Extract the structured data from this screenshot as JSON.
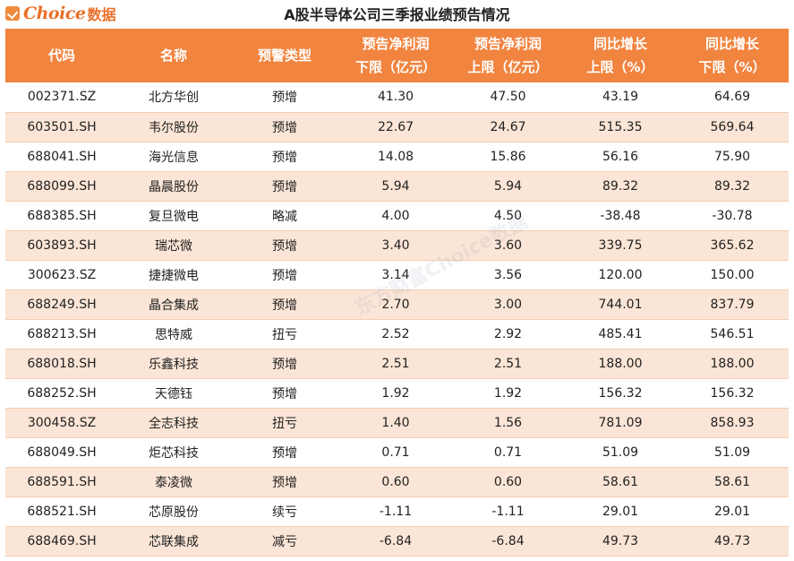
{
  "logo": {
    "text": "Choice",
    "cn": "数据"
  },
  "title": "A股半导体公司三季报业绩预告情况",
  "watermark": "东方财富Choice数据",
  "columns": [
    {
      "line1": "代码",
      "line2": ""
    },
    {
      "line1": "名称",
      "line2": ""
    },
    {
      "line1": "预警类型",
      "line2": ""
    },
    {
      "line1": "预告净利润",
      "line2": "下限（亿元）"
    },
    {
      "line1": "预告净利润",
      "line2": "上限（亿元）"
    },
    {
      "line1": "同比增长",
      "line2": "上限（%）"
    },
    {
      "line1": "同比增长",
      "line2": "下限（%）"
    }
  ],
  "rows": [
    [
      "002371.SZ",
      "北方华创",
      "预增",
      "41.30",
      "47.50",
      "43.19",
      "64.69"
    ],
    [
      "603501.SH",
      "韦尔股份",
      "预增",
      "22.67",
      "24.67",
      "515.35",
      "569.64"
    ],
    [
      "688041.SH",
      "海光信息",
      "预增",
      "14.08",
      "15.86",
      "56.16",
      "75.90"
    ],
    [
      "688099.SH",
      "晶晨股份",
      "预增",
      "5.94",
      "5.94",
      "89.32",
      "89.32"
    ],
    [
      "688385.SH",
      "复旦微电",
      "略减",
      "4.00",
      "4.50",
      "-38.48",
      "-30.78"
    ],
    [
      "603893.SH",
      "瑞芯微",
      "预增",
      "3.40",
      "3.60",
      "339.75",
      "365.62"
    ],
    [
      "300623.SZ",
      "捷捷微电",
      "预增",
      "3.14",
      "3.56",
      "120.00",
      "150.00"
    ],
    [
      "688249.SH",
      "晶合集成",
      "预增",
      "2.70",
      "3.00",
      "744.01",
      "837.79"
    ],
    [
      "688213.SH",
      "思特威",
      "扭亏",
      "2.52",
      "2.92",
      "485.41",
      "546.51"
    ],
    [
      "688018.SH",
      "乐鑫科技",
      "预增",
      "2.51",
      "2.51",
      "188.00",
      "188.00"
    ],
    [
      "688252.SH",
      "天德钰",
      "预增",
      "1.92",
      "1.92",
      "156.32",
      "156.32"
    ],
    [
      "300458.SZ",
      "全志科技",
      "扭亏",
      "1.40",
      "1.56",
      "781.09",
      "858.93"
    ],
    [
      "688049.SH",
      "炬芯科技",
      "预增",
      "0.71",
      "0.71",
      "51.09",
      "51.09"
    ],
    [
      "688591.SH",
      "泰凌微",
      "预增",
      "0.60",
      "0.60",
      "58.61",
      "58.61"
    ],
    [
      "688521.SH",
      "芯原股份",
      "续亏",
      "-1.11",
      "-1.11",
      "29.01",
      "29.01"
    ],
    [
      "688469.SH",
      "芯联集成",
      "减亏",
      "-6.84",
      "-6.84",
      "49.73",
      "49.73"
    ]
  ]
}
